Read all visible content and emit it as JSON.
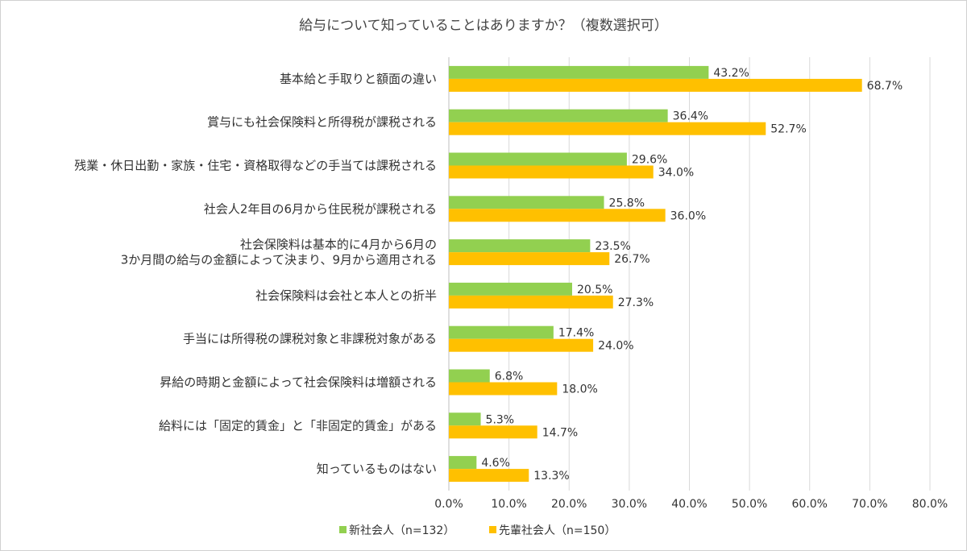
{
  "chart_data": {
    "type": "bar",
    "orientation": "horizontal",
    "title": "給与について知っていることはありますか？（複数選択可）",
    "categories": [
      [
        "基本給と手取りと額面の違い"
      ],
      [
        "賞与にも社会保険料と所得税が課税される"
      ],
      [
        "残業・休日出勤・家族・住宅・資格取得などの手当ては課税される"
      ],
      [
        "社会人2年目の6月から住民税が課税される"
      ],
      [
        "社会保険料は基本的に4月から6月の",
        "3か月間の給与の金額によって決まり、9月から適用される"
      ],
      [
        "社会保険料は会社と本人との折半"
      ],
      [
        "手当には所得税の課税対象と非課税対象がある"
      ],
      [
        "昇給の時期と金額によって社会保険料は増額される"
      ],
      [
        "給料には「固定的賃金」と「非固定的賃金」がある"
      ],
      [
        "知っているものはない"
      ]
    ],
    "series": [
      {
        "name": "新社会人（n=132）",
        "color": "#92d050",
        "values": [
          43.2,
          36.4,
          29.6,
          25.8,
          23.5,
          20.5,
          17.4,
          6.8,
          5.3,
          4.6
        ]
      },
      {
        "name": "先輩社会人（n=150）",
        "color": "#ffc000",
        "values": [
          68.7,
          52.7,
          34.0,
          36.0,
          26.7,
          27.3,
          24.0,
          18.0,
          14.7,
          13.3
        ]
      }
    ],
    "xlim": [
      0,
      80
    ],
    "xticks": [
      0,
      10,
      20,
      30,
      40,
      50,
      60,
      70,
      80
    ],
    "tick_format": "percent_1dp",
    "grid": true,
    "legend_position": "bottom"
  }
}
